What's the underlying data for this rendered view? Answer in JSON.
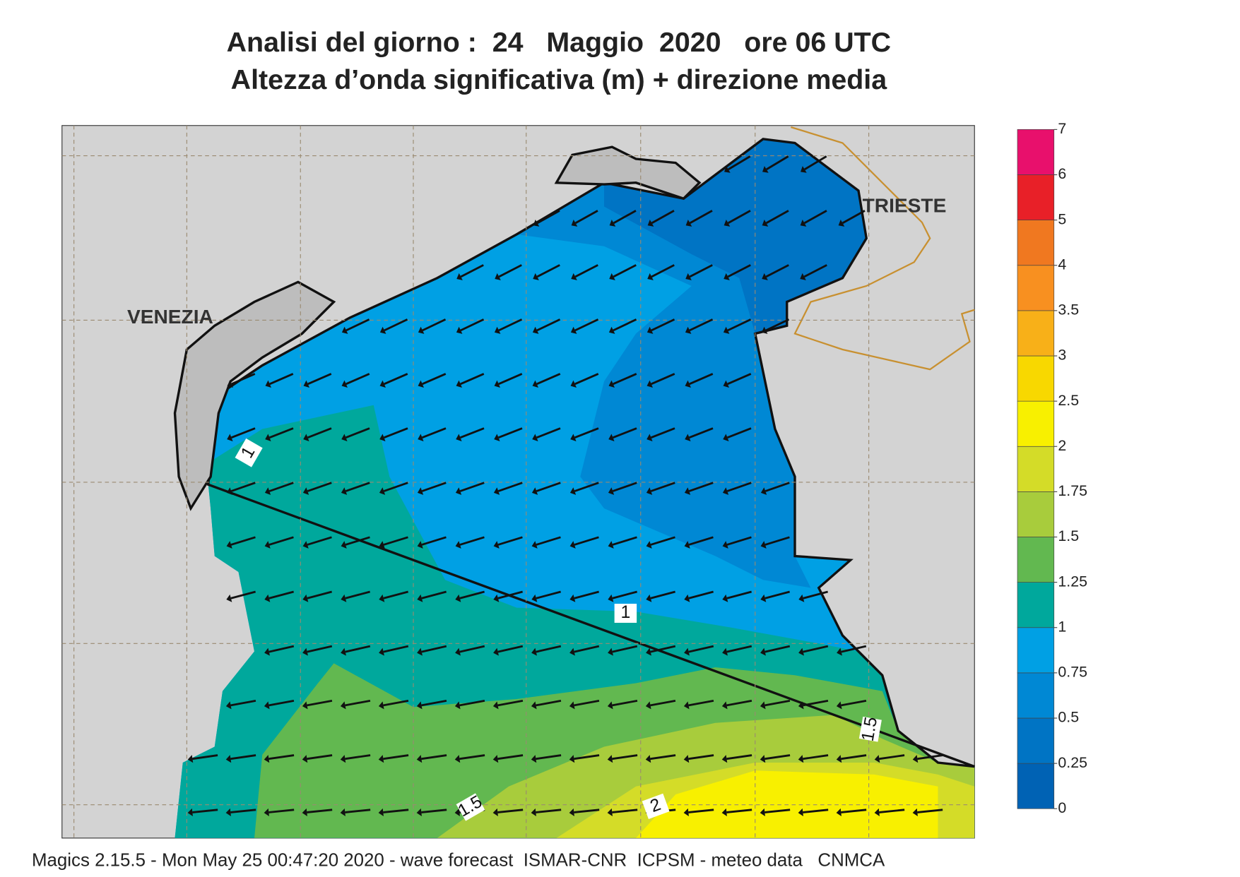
{
  "header": {
    "title_line1": "Analisi del giorno :  24   Maggio  2020   ore 06 UTC",
    "title_line2": "Altezza d’onda significativa (m) + direzione media"
  },
  "map": {
    "cities": [
      "VENEZIA",
      "TRIESTE"
    ],
    "contour_labels": [
      "1",
      "1",
      "1.5",
      "1.5",
      "2"
    ]
  },
  "legend": {
    "ticks": [
      0,
      0.25,
      0.5,
      0.75,
      1,
      1.25,
      1.5,
      1.75,
      2,
      2.5,
      3,
      3.5,
      4,
      5,
      6,
      7
    ],
    "colors": [
      "#0062b4",
      "#0074c4",
      "#0088d4",
      "#00a0e4",
      "#00a89c",
      "#62b850",
      "#a8cc3c",
      "#d4dc28",
      "#f8f000",
      "#f8d800",
      "#f8b018",
      "#f89020",
      "#f07820",
      "#e82028",
      "#e8106c"
    ]
  },
  "footer": "Magics 2.15.5 - Mon May 25 00:47:20 2020 - wave forecast  ISMAR-CNR  ICPSM - meteo data   CNMCA"
}
